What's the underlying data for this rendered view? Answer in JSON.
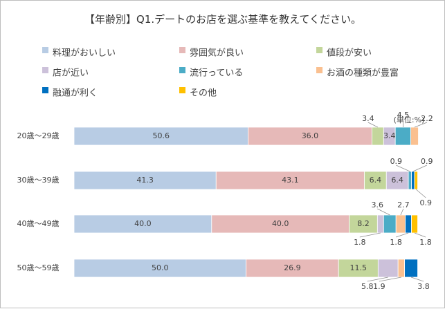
{
  "chart_data": {
    "type": "bar",
    "orientation": "horizontal",
    "stacked": true,
    "title": "【年齢別】Q1.デートのお店を選ぶ基準を教えてください。",
    "unit_label": "(単位:%)",
    "legend_position": "top",
    "xlim": [
      0,
      100
    ],
    "grid": false,
    "categories": [
      "20歳～29歳",
      "30歳～39歳",
      "40歳～49歳",
      "50歳～59歳"
    ],
    "series": [
      {
        "name": "料理がおいしい",
        "color": "#b8cce4",
        "values": [
          50.6,
          41.3,
          40.0,
          50.0
        ]
      },
      {
        "name": "雰囲気が良い",
        "color": "#e6b9b8",
        "values": [
          36.0,
          43.1,
          40.0,
          26.9
        ]
      },
      {
        "name": "値段が安い",
        "color": "#c3d69b",
        "values": [
          3.4,
          6.4,
          8.2,
          11.5
        ]
      },
      {
        "name": "店が近い",
        "color": "#ccc1da",
        "values": [
          3.4,
          6.4,
          1.8,
          5.8
        ]
      },
      {
        "name": "流行っている",
        "color": "#4bacc6",
        "values": [
          4.5,
          0.9,
          3.6,
          0.0
        ]
      },
      {
        "name": "お酒の種類が豊富",
        "color": "#fac090",
        "values": [
          2.2,
          0.0,
          2.7,
          1.9
        ]
      },
      {
        "name": "融通が利く",
        "color": "#0070c0",
        "values": [
          0.0,
          0.9,
          1.8,
          3.8
        ]
      },
      {
        "name": "その他",
        "color": "#ffc000",
        "values": [
          0.0,
          0.9,
          1.8,
          0.0
        ]
      }
    ],
    "data_labels": [
      {
        "category": 0,
        "series": 0,
        "text": "50.6"
      },
      {
        "category": 0,
        "series": 1,
        "text": "36.0"
      },
      {
        "category": 0,
        "series": 2,
        "text": "3.4"
      },
      {
        "category": 0,
        "series": 3,
        "text": "3.4"
      },
      {
        "category": 0,
        "series": 4,
        "text": "4.5"
      },
      {
        "category": 0,
        "series": 5,
        "text": "2.2"
      },
      {
        "category": 1,
        "series": 0,
        "text": "41.3"
      },
      {
        "category": 1,
        "series": 1,
        "text": "43.1"
      },
      {
        "category": 1,
        "series": 2,
        "text": "6.4"
      },
      {
        "category": 1,
        "series": 3,
        "text": "6.4"
      },
      {
        "category": 1,
        "series": 4,
        "text": "0.9"
      },
      {
        "category": 1,
        "series": 6,
        "text": "0.9"
      },
      {
        "category": 1,
        "series": 7,
        "text": "0.9"
      },
      {
        "category": 2,
        "series": 0,
        "text": "40.0"
      },
      {
        "category": 2,
        "series": 1,
        "text": "40.0"
      },
      {
        "category": 2,
        "series": 2,
        "text": "8.2"
      },
      {
        "category": 2,
        "series": 3,
        "text": "1.8"
      },
      {
        "category": 2,
        "series": 4,
        "text": "3.6"
      },
      {
        "category": 2,
        "series": 5,
        "text": "2.7"
      },
      {
        "category": 2,
        "series": 6,
        "text": "1.8"
      },
      {
        "category": 2,
        "series": 7,
        "text": "1.8"
      },
      {
        "category": 3,
        "series": 0,
        "text": "50.0"
      },
      {
        "category": 3,
        "series": 1,
        "text": "26.9"
      },
      {
        "category": 3,
        "series": 2,
        "text": "11.5"
      },
      {
        "category": 3,
        "series": 3,
        "text": "5.8"
      },
      {
        "category": 3,
        "series": 5,
        "text": "1.9"
      },
      {
        "category": 3,
        "series": 6,
        "text": "3.8"
      }
    ]
  }
}
